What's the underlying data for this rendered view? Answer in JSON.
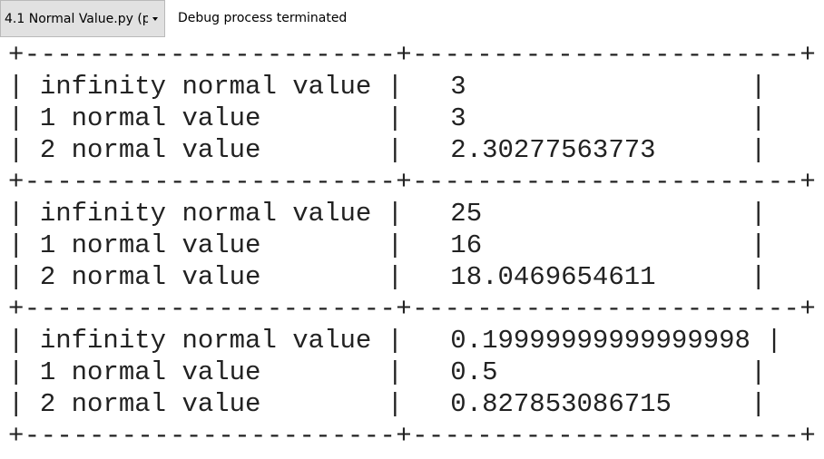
{
  "toolbar": {
    "tab_label": "4.1 Normal Value.py (p",
    "status": "Debug process terminated"
  },
  "console": {
    "tables": [
      {
        "rows": [
          {
            "label": "infinity normal value",
            "value": "3"
          },
          {
            "label": "1 normal value",
            "value": "3"
          },
          {
            "label": "2 normal value",
            "value": "2.30277563773"
          }
        ]
      },
      {
        "rows": [
          {
            "label": "infinity normal value",
            "value": "25"
          },
          {
            "label": "1 normal value",
            "value": "16"
          },
          {
            "label": "2 normal value",
            "value": "18.0469654611"
          }
        ]
      },
      {
        "rows": [
          {
            "label": "infinity normal value",
            "value": "0.19999999999999998"
          },
          {
            "label": "1 normal value",
            "value": "0.5"
          },
          {
            "label": "2 normal value",
            "value": "0.827853086715"
          }
        ]
      }
    ]
  }
}
